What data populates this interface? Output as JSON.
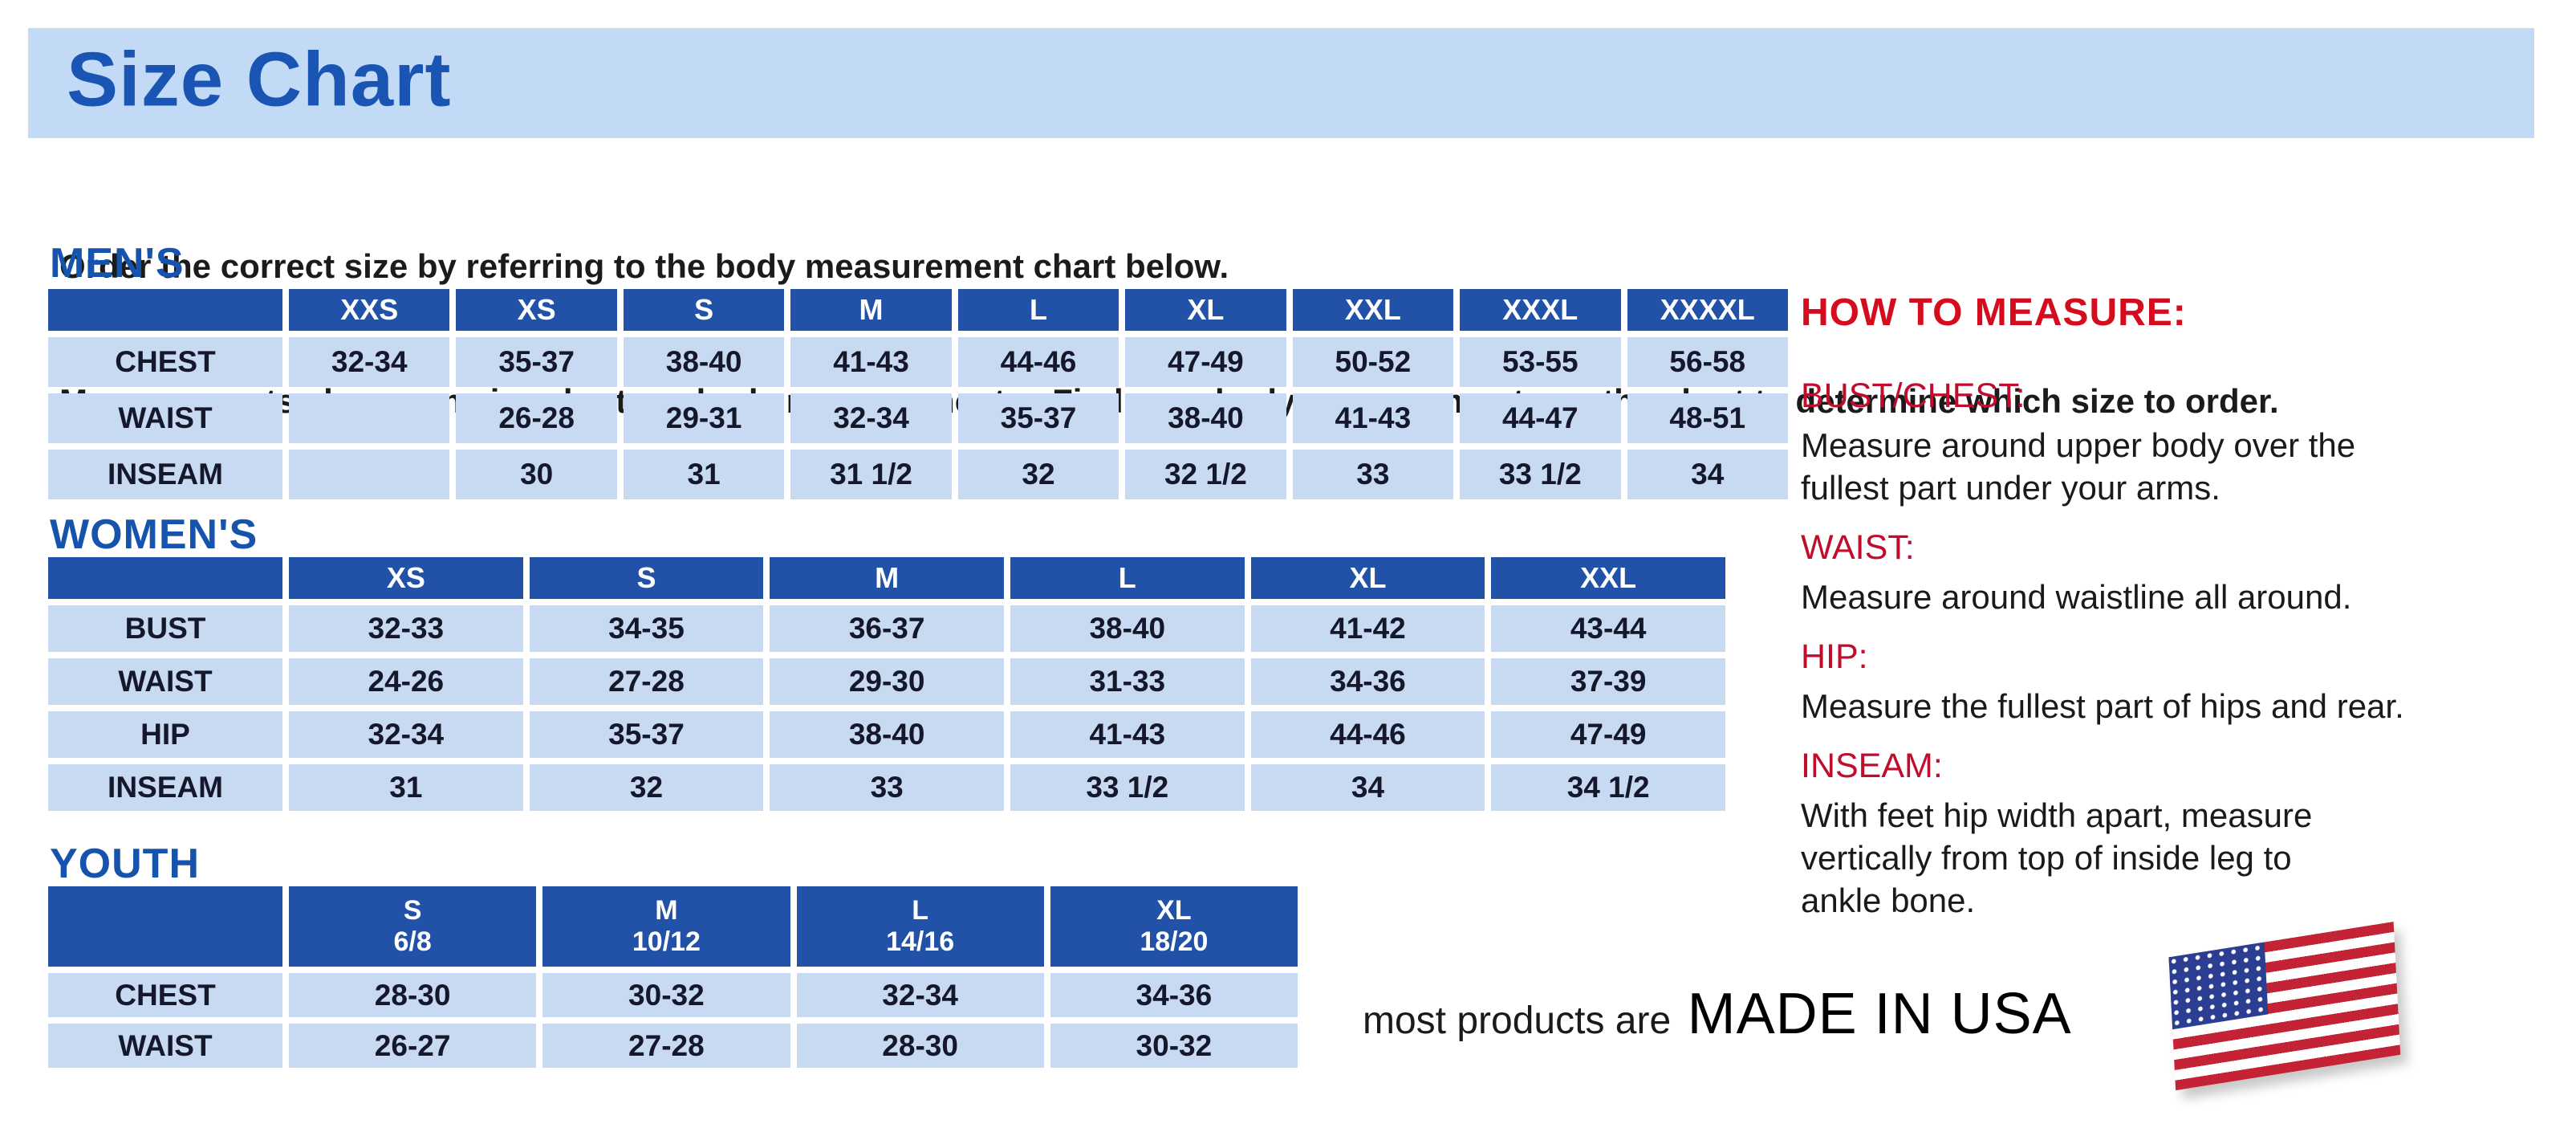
{
  "page": {
    "title": "Size Chart",
    "intro_line1": "Order the correct size by referring to the body measurement chart below.",
    "intro_line2": "Measurements shown on size chart are body measurements.  Find your body measurements on the chart to determine which size to order."
  },
  "tables": {
    "mens": {
      "heading": "MEN'S",
      "sizes": [
        "XXS",
        "XS",
        "S",
        "M",
        "L",
        "XL",
        "XXL",
        "XXXL",
        "XXXXL"
      ],
      "rows": [
        {
          "label": "CHEST",
          "values": [
            "32-34",
            "35-37",
            "38-40",
            "41-43",
            "44-46",
            "47-49",
            "50-52",
            "53-55",
            "56-58"
          ]
        },
        {
          "label": "WAIST",
          "values": [
            "",
            "26-28",
            "29-31",
            "32-34",
            "35-37",
            "38-40",
            "41-43",
            "44-47",
            "48-51"
          ]
        },
        {
          "label": "INSEAM",
          "values": [
            "",
            "30",
            "31",
            "31 1/2",
            "32",
            "32 1/2",
            "33",
            "33 1/2",
            "34"
          ]
        }
      ]
    },
    "womens": {
      "heading": "WOMEN'S",
      "sizes": [
        "XS",
        "S",
        "M",
        "L",
        "XL",
        "XXL"
      ],
      "rows": [
        {
          "label": "BUST",
          "values": [
            "32-33",
            "34-35",
            "36-37",
            "38-40",
            "41-42",
            "43-44"
          ]
        },
        {
          "label": "WAIST",
          "values": [
            "24-26",
            "27-28",
            "29-30",
            "31-33",
            "34-36",
            "37-39"
          ]
        },
        {
          "label": "HIP",
          "values": [
            "32-34",
            "35-37",
            "38-40",
            "41-43",
            "44-46",
            "47-49"
          ]
        },
        {
          "label": "INSEAM",
          "values": [
            "31",
            "32",
            "33",
            "33 1/2",
            "34",
            "34 1/2"
          ]
        }
      ]
    },
    "youth": {
      "heading": "YOUTH",
      "sizes": [
        {
          "label": "S",
          "range": "6/8"
        },
        {
          "label": "M",
          "range": "10/12"
        },
        {
          "label": "L",
          "range": "14/16"
        },
        {
          "label": "XL",
          "range": "18/20"
        }
      ],
      "rows": [
        {
          "label": "CHEST",
          "values": [
            "28-30",
            "30-32",
            "32-34",
            "34-36"
          ]
        },
        {
          "label": "WAIST",
          "values": [
            "26-27",
            "27-28",
            "28-30",
            "30-32"
          ]
        }
      ]
    }
  },
  "how_to_measure": {
    "heading": "HOW TO MEASURE:",
    "items": [
      {
        "label": "BUST/CHEST:",
        "text": "Measure around upper body over the\nfullest part under your arms."
      },
      {
        "label": "WAIST:",
        "text": "Measure around waistline all around."
      },
      {
        "label": "HIP:",
        "text": "Measure the fullest part of hips and rear."
      },
      {
        "label": "INSEAM:",
        "text": "With feet hip width apart, measure\nvertically from top of inside leg to\nankle bone."
      }
    ]
  },
  "footer": {
    "prefix": "most products are",
    "made_in": "MADE IN USA",
    "flag_icon": "usa-flag-icon"
  },
  "colors": {
    "banner_bg": "#c3daf6",
    "heading_blue": "#1553ad",
    "table_header_blue": "#2152a7",
    "table_cell_blue": "#c7daf2",
    "accent_red_heading": "#d30d1d",
    "accent_red_label": "#c10d2d",
    "flag_red": "#c32334",
    "flag_blue": "#2c3e92"
  }
}
